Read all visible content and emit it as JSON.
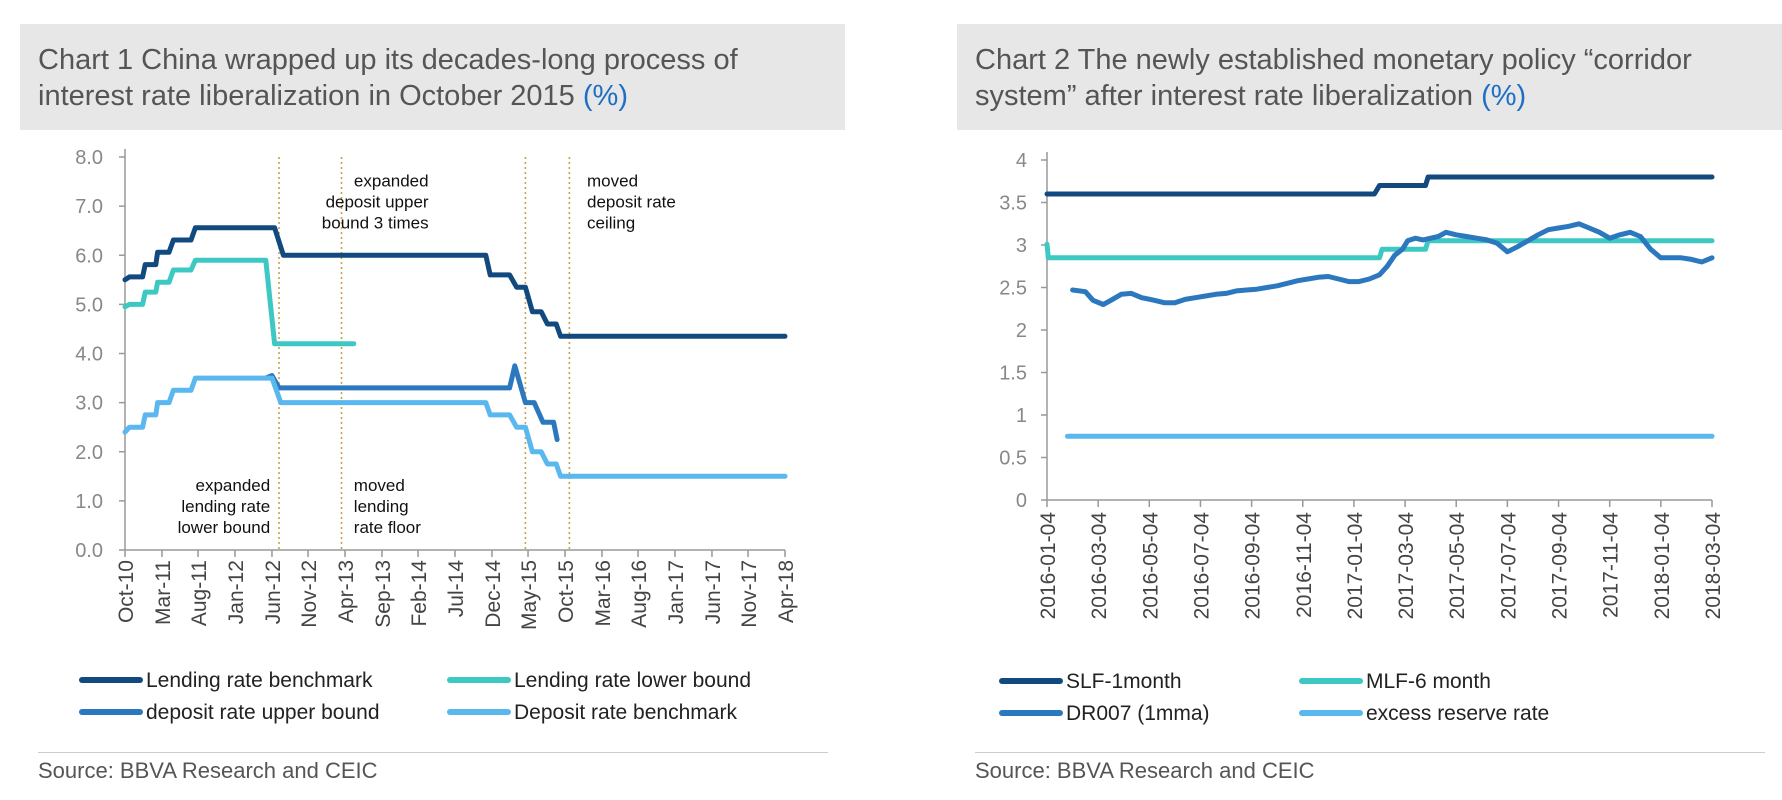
{
  "charts": [
    {
      "title_main": "Chart 1 China wrapped up its decades-long process of interest rate liberalization in October 2015",
      "title_unit": "(%)",
      "source": "Source: BBVA Research and CEIC"
    },
    {
      "title_main": "Chart 2 The newly established monetary policy “corridor system” after interest rate liberalization",
      "title_unit": "(%)",
      "source": "Source: BBVA Research and CEIC"
    }
  ],
  "chart_data": [
    {
      "type": "line",
      "title": "Chart 1 China wrapped up its decades-long process of interest rate liberalization in October 2015 (%)",
      "ylim": [
        0,
        8
      ],
      "yticks": [
        "0.0",
        "1.0",
        "2.0",
        "3.0",
        "4.0",
        "5.0",
        "6.0",
        "7.0",
        "8.0"
      ],
      "xlim": [
        2010.75,
        2018.25
      ],
      "xticks": [
        {
          "label": "Oct-10",
          "x": 2010.75
        },
        {
          "label": "Mar-11",
          "x": 2011.17
        },
        {
          "label": "Aug-11",
          "x": 2011.58
        },
        {
          "label": "Jan-12",
          "x": 2012.0
        },
        {
          "label": "Jun-12",
          "x": 2012.42
        },
        {
          "label": "Nov-12",
          "x": 2012.83
        },
        {
          "label": "Apr-13",
          "x": 2013.25
        },
        {
          "label": "Sep-13",
          "x": 2013.67
        },
        {
          "label": "Feb-14",
          "x": 2014.08
        },
        {
          "label": "Jul-14",
          "x": 2014.5
        },
        {
          "label": "Dec-14",
          "x": 2014.92
        },
        {
          "label": "May-15",
          "x": 2015.33
        },
        {
          "label": "Oct-15",
          "x": 2015.75
        },
        {
          "label": "Mar-16",
          "x": 2016.17
        },
        {
          "label": "Aug-16",
          "x": 2016.58
        },
        {
          "label": "Jan-17",
          "x": 2017.0
        },
        {
          "label": "Jun-17",
          "x": 2017.42
        },
        {
          "label": "Nov-17",
          "x": 2017.83
        },
        {
          "label": "Apr-18",
          "x": 2018.25
        }
      ],
      "vlines": [
        2012.5,
        2013.21,
        2015.3,
        2015.8
      ],
      "annotations": [
        {
          "lines": [
            "expanded",
            "deposit upper",
            "bound 3 times"
          ],
          "x": 2014.2,
          "y": 7.4,
          "align": "end"
        },
        {
          "lines": [
            "moved",
            "deposit rate",
            "ceiling"
          ],
          "x": 2016.0,
          "y": 7.4,
          "align": "start"
        },
        {
          "lines": [
            "expanded",
            "lending rate",
            "lower bound"
          ],
          "x": 2012.4,
          "y": 1.2,
          "align": "end"
        },
        {
          "lines": [
            "moved",
            "lending",
            "rate floor"
          ],
          "x": 2013.35,
          "y": 1.2,
          "align": "start"
        }
      ],
      "legend_placement": "bottom",
      "series": [
        {
          "name": "Lending rate benchmark",
          "color": "#124a80",
          "points": [
            [
              2010.75,
              5.5
            ],
            [
              2010.8,
              5.56
            ],
            [
              2010.95,
              5.56
            ],
            [
              2010.98,
              5.81
            ],
            [
              2011.1,
              5.81
            ],
            [
              2011.12,
              6.06
            ],
            [
              2011.25,
              6.06
            ],
            [
              2011.3,
              6.31
            ],
            [
              2011.5,
              6.31
            ],
            [
              2011.55,
              6.56
            ],
            [
              2012.45,
              6.56
            ],
            [
              2012.55,
              6.0
            ],
            [
              2014.85,
              6.0
            ],
            [
              2014.9,
              5.6
            ],
            [
              2015.12,
              5.6
            ],
            [
              2015.2,
              5.35
            ],
            [
              2015.3,
              5.35
            ],
            [
              2015.38,
              4.85
            ],
            [
              2015.48,
              4.85
            ],
            [
              2015.55,
              4.6
            ],
            [
              2015.65,
              4.6
            ],
            [
              2015.7,
              4.35
            ],
            [
              2018.25,
              4.35
            ]
          ]
        },
        {
          "name": "Lending rate lower bound",
          "color": "#3ec8c3",
          "points": [
            [
              2010.75,
              4.95
            ],
            [
              2010.8,
              5.0
            ],
            [
              2010.95,
              5.0
            ],
            [
              2010.98,
              5.25
            ],
            [
              2011.1,
              5.25
            ],
            [
              2011.12,
              5.45
            ],
            [
              2011.25,
              5.45
            ],
            [
              2011.3,
              5.7
            ],
            [
              2011.5,
              5.7
            ],
            [
              2011.55,
              5.9
            ],
            [
              2012.35,
              5.9
            ],
            [
              2012.45,
              4.2
            ],
            [
              2013.35,
              4.2
            ]
          ]
        },
        {
          "name": "deposit rate upper bound",
          "color": "#2c78be",
          "points": [
            [
              2012.35,
              3.5
            ],
            [
              2012.42,
              3.55
            ],
            [
              2012.5,
              3.3
            ],
            [
              2015.12,
              3.3
            ],
            [
              2015.18,
              3.75
            ],
            [
              2015.3,
              3.0
            ],
            [
              2015.4,
              3.0
            ],
            [
              2015.5,
              2.6
            ],
            [
              2015.62,
              2.6
            ],
            [
              2015.66,
              2.25
            ]
          ]
        },
        {
          "name": "Deposit rate benchmark",
          "color": "#5ab8ef",
          "points": [
            [
              2010.75,
              2.4
            ],
            [
              2010.8,
              2.5
            ],
            [
              2010.95,
              2.5
            ],
            [
              2010.98,
              2.75
            ],
            [
              2011.1,
              2.75
            ],
            [
              2011.12,
              3.0
            ],
            [
              2011.25,
              3.0
            ],
            [
              2011.3,
              3.25
            ],
            [
              2011.5,
              3.25
            ],
            [
              2011.55,
              3.5
            ],
            [
              2012.42,
              3.5
            ],
            [
              2012.52,
              3.0
            ],
            [
              2014.85,
              3.0
            ],
            [
              2014.9,
              2.75
            ],
            [
              2015.12,
              2.75
            ],
            [
              2015.2,
              2.5
            ],
            [
              2015.3,
              2.5
            ],
            [
              2015.38,
              2.0
            ],
            [
              2015.48,
              2.0
            ],
            [
              2015.55,
              1.75
            ],
            [
              2015.65,
              1.75
            ],
            [
              2015.7,
              1.5
            ],
            [
              2018.25,
              1.5
            ]
          ]
        }
      ]
    },
    {
      "type": "line",
      "title": "Chart 2 The newly established monetary policy “corridor system” after interest rate liberalization (%)",
      "ylim": [
        0,
        4
      ],
      "yticks": [
        "0",
        "0.5",
        "1",
        "1.5",
        "2",
        "2.5",
        "3",
        "3.5",
        "4"
      ],
      "xlim": [
        0,
        26
      ],
      "xticks": [
        {
          "label": "2016-01-04",
          "x": 0
        },
        {
          "label": "2016-03-04",
          "x": 2
        },
        {
          "label": "2016-05-04",
          "x": 4
        },
        {
          "label": "2016-07-04",
          "x": 6
        },
        {
          "label": "2016-09-04",
          "x": 8
        },
        {
          "label": "2016-11-04",
          "x": 10
        },
        {
          "label": "2017-01-04",
          "x": 12
        },
        {
          "label": "2017-03-04",
          "x": 14
        },
        {
          "label": "2017-05-04",
          "x": 16
        },
        {
          "label": "2017-07-04",
          "x": 18
        },
        {
          "label": "2017-09-04",
          "x": 20
        },
        {
          "label": "2017-11-04",
          "x": 22
        },
        {
          "label": "2018-01-04",
          "x": 24
        },
        {
          "label": "2018-03-04",
          "x": 26
        }
      ],
      "legend_placement": "bottom",
      "series": [
        {
          "name": "SLF-1month",
          "color": "#124a80",
          "points": [
            [
              0,
              3.6
            ],
            [
              12.8,
              3.6
            ],
            [
              13.0,
              3.7
            ],
            [
              14.8,
              3.7
            ],
            [
              14.9,
              3.8
            ],
            [
              26,
              3.8
            ]
          ]
        },
        {
          "name": "MLF-6 month",
          "color": "#3ec8c3",
          "points": [
            [
              0,
              3.01
            ],
            [
              0.05,
              2.85
            ],
            [
              13.0,
              2.85
            ],
            [
              13.1,
              2.95
            ],
            [
              14.8,
              2.95
            ],
            [
              14.9,
              3.05
            ],
            [
              26,
              3.05
            ]
          ]
        },
        {
          "name": "DR007 (1mma)",
          "color": "#2c78be",
          "points": [
            [
              1.0,
              2.47
            ],
            [
              1.5,
              2.45
            ],
            [
              1.8,
              2.35
            ],
            [
              2.2,
              2.3
            ],
            [
              2.5,
              2.35
            ],
            [
              2.9,
              2.42
            ],
            [
              3.3,
              2.43
            ],
            [
              3.7,
              2.38
            ],
            [
              4.2,
              2.35
            ],
            [
              4.6,
              2.32
            ],
            [
              5.0,
              2.32
            ],
            [
              5.4,
              2.36
            ],
            [
              5.8,
              2.38
            ],
            [
              6.2,
              2.4
            ],
            [
              6.6,
              2.42
            ],
            [
              7.0,
              2.43
            ],
            [
              7.4,
              2.46
            ],
            [
              7.8,
              2.47
            ],
            [
              8.2,
              2.48
            ],
            [
              8.6,
              2.5
            ],
            [
              9.0,
              2.52
            ],
            [
              9.4,
              2.55
            ],
            [
              9.8,
              2.58
            ],
            [
              10.2,
              2.6
            ],
            [
              10.6,
              2.62
            ],
            [
              11.0,
              2.63
            ],
            [
              11.4,
              2.6
            ],
            [
              11.8,
              2.57
            ],
            [
              12.2,
              2.57
            ],
            [
              12.6,
              2.6
            ],
            [
              13.0,
              2.65
            ],
            [
              13.3,
              2.75
            ],
            [
              13.6,
              2.88
            ],
            [
              13.9,
              2.95
            ],
            [
              14.1,
              3.05
            ],
            [
              14.4,
              3.08
            ],
            [
              14.7,
              3.06
            ],
            [
              15.0,
              3.08
            ],
            [
              15.3,
              3.1
            ],
            [
              15.6,
              3.15
            ],
            [
              16.0,
              3.12
            ],
            [
              16.4,
              3.1
            ],
            [
              16.8,
              3.08
            ],
            [
              17.2,
              3.06
            ],
            [
              17.6,
              3.02
            ],
            [
              18.0,
              2.92
            ],
            [
              18.4,
              2.98
            ],
            [
              18.8,
              3.05
            ],
            [
              19.2,
              3.12
            ],
            [
              19.6,
              3.18
            ],
            [
              20.0,
              3.2
            ],
            [
              20.4,
              3.22
            ],
            [
              20.8,
              3.25
            ],
            [
              21.2,
              3.2
            ],
            [
              21.6,
              3.15
            ],
            [
              22.0,
              3.08
            ],
            [
              22.4,
              3.12
            ],
            [
              22.8,
              3.15
            ],
            [
              23.2,
              3.1
            ],
            [
              23.6,
              2.95
            ],
            [
              24.0,
              2.85
            ],
            [
              24.4,
              2.85
            ],
            [
              24.8,
              2.85
            ],
            [
              25.2,
              2.83
            ],
            [
              25.6,
              2.8
            ],
            [
              26,
              2.85
            ]
          ]
        },
        {
          "name": "excess reserve rate",
          "color": "#5ab8ef",
          "points": [
            [
              0.8,
              0.75
            ],
            [
              26,
              0.75
            ]
          ]
        }
      ]
    }
  ]
}
